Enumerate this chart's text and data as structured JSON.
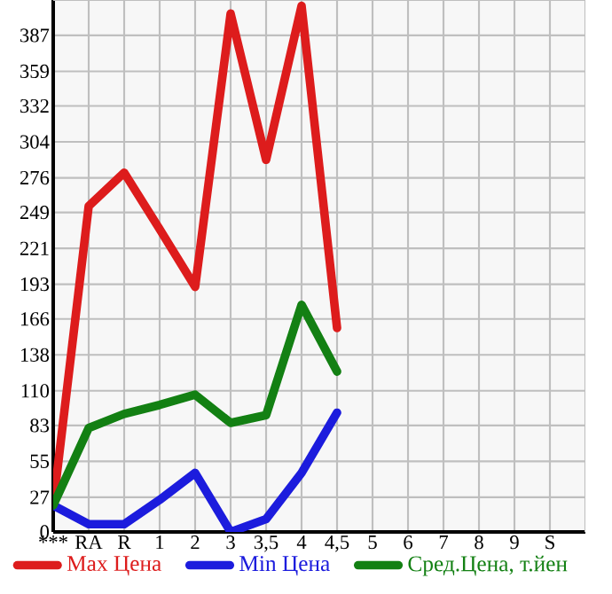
{
  "chart_data": {
    "type": "line",
    "categories": [
      "***",
      "RA",
      "R",
      "1",
      "2",
      "3",
      "3,5",
      "4",
      "4,5",
      "5",
      "6",
      "7",
      "8",
      "9",
      "S"
    ],
    "series": [
      {
        "name": "Max Цена",
        "color": "#dd1c1c",
        "values": [
          20.7,
          254,
          280,
          236,
          191,
          404,
          290,
          410,
          159,
          null,
          null,
          null,
          null,
          null,
          null
        ]
      },
      {
        "name": "Min Цена",
        "color": "#1c1cdd",
        "values": [
          20.7,
          6,
          6,
          25,
          46,
          0,
          10,
          46,
          93,
          null,
          null,
          null,
          null,
          null,
          null
        ]
      },
      {
        "name": "Сред.Цена, т.йен",
        "color": "#138013",
        "values": [
          20.7,
          81,
          92,
          99,
          107,
          85,
          91,
          177,
          125,
          null,
          null,
          null,
          null,
          null,
          null
        ]
      }
    ],
    "ylim": [
      0,
      414.6
    ],
    "yticks": [
      0,
      27,
      55,
      83,
      110,
      138,
      166,
      193,
      221,
      249,
      276,
      304,
      332,
      359,
      387
    ],
    "grid": true,
    "legend": "bottom",
    "line_style": "solid"
  }
}
